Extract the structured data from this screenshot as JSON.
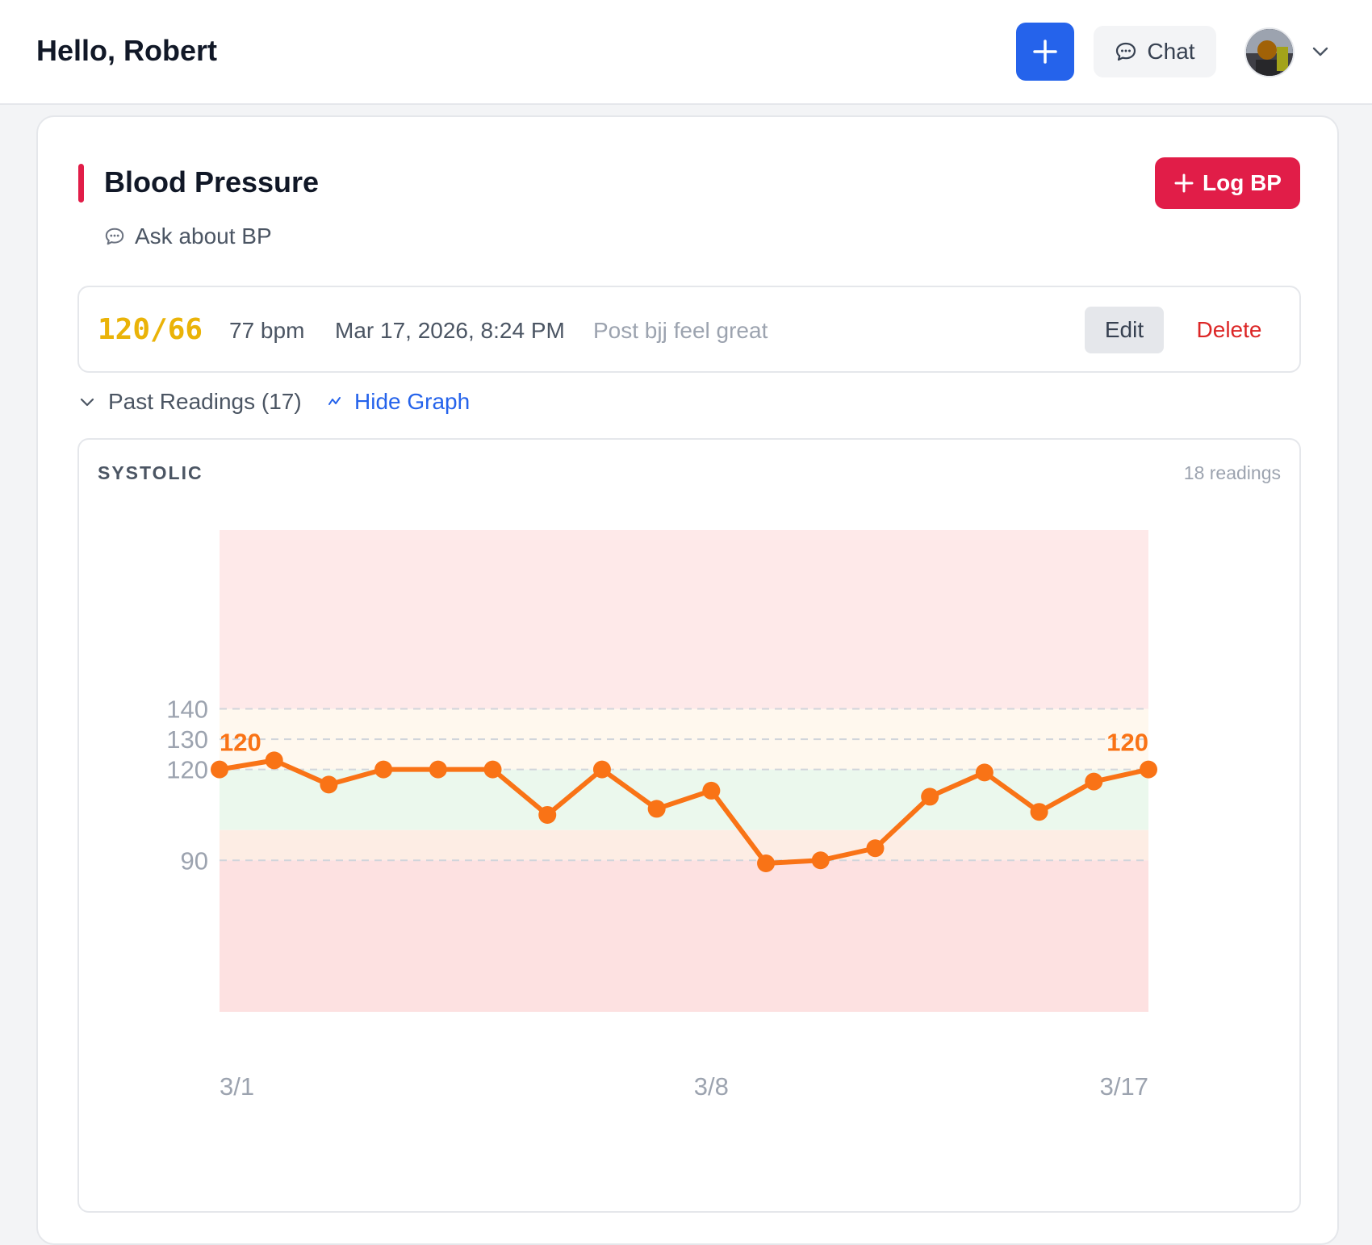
{
  "header": {
    "greeting": "Hello, Robert",
    "add_icon": "plus-icon",
    "chat_label": "Chat",
    "chat_icon": "chat-bubble-icon",
    "profile_menu_icon": "chevron-down-icon"
  },
  "card": {
    "title": "Blood Pressure",
    "accent_color": "#e11d48",
    "log_button_label": "Log BP",
    "ask_label": "Ask about BP",
    "latest": {
      "bp": "120/66",
      "bpm": "77 bpm",
      "datetime": "Mar 17, 2026, 8:24 PM",
      "note": "Post bjj feel great",
      "edit_label": "Edit",
      "delete_label": "Delete"
    },
    "past_readings_label": "Past Readings (17)",
    "hide_graph_label": "Hide Graph"
  },
  "colors": {
    "primary_blue": "#2563eb",
    "accent_red": "#e11d48",
    "bp_value": "#eab308",
    "series": "#f97316",
    "delete_red": "#dc2626"
  },
  "chart_data": {
    "type": "line",
    "title": "SYSTOLIC",
    "count_label": "18 readings",
    "series": [
      {
        "values": [
          120,
          123,
          115,
          120,
          120,
          120,
          105,
          120,
          107,
          113,
          89,
          90,
          94,
          111,
          119,
          106,
          116,
          120
        ]
      }
    ],
    "y_ticks": [
      {
        "value": 140,
        "label": "140"
      },
      {
        "value": 130,
        "label": "130"
      },
      {
        "value": 120,
        "label": "120"
      },
      {
        "value": 90,
        "label": "90"
      }
    ],
    "x_ticks": [
      {
        "index": 0,
        "label": "3/1"
      },
      {
        "index": 9,
        "label": "3/8"
      },
      {
        "index": 17,
        "label": "3/17"
      }
    ],
    "ylim": [
      40,
      199
    ],
    "bands": [
      {
        "from": 140,
        "to": 199,
        "color": "#fee9e9"
      },
      {
        "from": 120,
        "to": 140,
        "color": "#fff8ee"
      },
      {
        "from": 100,
        "to": 120,
        "color": "#ebf8ed"
      },
      {
        "from": 90,
        "to": 100,
        "color": "#fdede4"
      },
      {
        "from": 40,
        "to": 90,
        "color": "#fde1e1"
      }
    ],
    "first_value_label": "120",
    "last_value_label": "120"
  }
}
